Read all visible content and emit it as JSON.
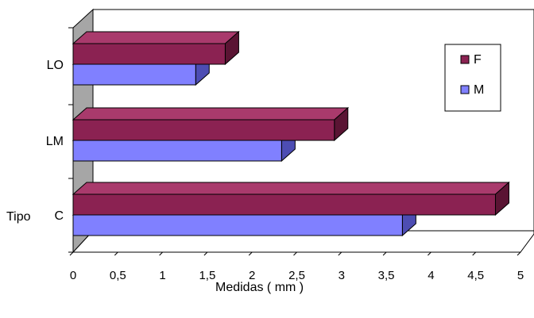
{
  "chart_data": {
    "type": "bar",
    "orientation": "horizontal",
    "three_d": true,
    "categories": [
      "C",
      "LM",
      "LO"
    ],
    "series": [
      {
        "name": "F",
        "values": [
          4.72,
          2.92,
          1.7
        ],
        "color": "#8b2252",
        "color_dark": "#5a1433",
        "color_light": "#a93a6c"
      },
      {
        "name": "M",
        "values": [
          3.68,
          2.33,
          1.37
        ],
        "color": "#8080ff",
        "color_dark": "#4d4db3",
        "color_light": "#a0a0ff"
      }
    ],
    "xticks": [
      "0",
      "0,5",
      "1",
      "1,5",
      "2",
      "2,5",
      "3",
      "3,5",
      "4",
      "4,5",
      "5"
    ],
    "xlim": [
      0,
      5
    ],
    "xlabel": "Medidas  ( mm )",
    "ylabel": "Tipo",
    "legend_position": "top-right",
    "wall_color": "#a6a6a6"
  }
}
